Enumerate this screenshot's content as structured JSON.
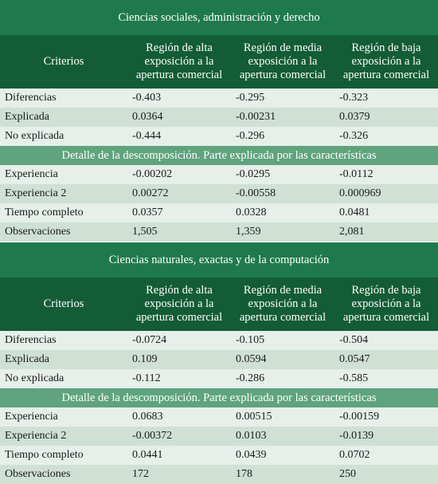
{
  "header_cols": [
    "Criterios",
    "Región de alta exposición a la apertura comercial",
    "Región de media exposición a la apertura comercial",
    "Región de baja exposición a la apertura comercial"
  ],
  "header_lines": [
    [
      "Región de alta",
      "exposición a la",
      "apertura comercial"
    ],
    [
      "Región de media",
      "exposición a la",
      "apertura comercial"
    ],
    [
      "Región de baja",
      "exposición a la",
      "apertura comercial"
    ]
  ],
  "sections": [
    {
      "title": "Ciencias sociales, administración y derecho",
      "rows_a": [
        {
          "label": "Diferencias",
          "values": [
            "-0.403",
            "-0.295",
            "-0.323"
          ]
        },
        {
          "label": "Explicada",
          "values": [
            "0.0364",
            "-0.00231",
            "0.0379"
          ]
        },
        {
          "label": "No explicada",
          "values": [
            "-0.444",
            "-0.296",
            "-0.326"
          ]
        }
      ],
      "subtitle": "Detalle de la descomposición. Parte explicada por las características",
      "rows_b": [
        {
          "label": "Experiencia",
          "values": [
            "-0.00202",
            "-0.0295",
            "-0.0112"
          ]
        },
        {
          "label": "Experiencia 2",
          "values": [
            "0.00272",
            "-0.00558",
            "0.000969"
          ]
        },
        {
          "label": "Tiempo completo",
          "values": [
            "0.0357",
            "0.0328",
            "0.0481"
          ]
        },
        {
          "label": "Observaciones",
          "values": [
            "1,505",
            "1,359",
            "2,081"
          ]
        }
      ]
    },
    {
      "title": "Ciencias naturales, exactas y de la computación",
      "rows_a": [
        {
          "label": "Diferencias",
          "values": [
            "-0.0724",
            "-0.105",
            "-0.504"
          ]
        },
        {
          "label": "Explicada",
          "values": [
            "0.109",
            "0.0594",
            "0.0547"
          ]
        },
        {
          "label": "No explicada",
          "values": [
            "-0.112",
            "-0.286",
            "-0.585"
          ]
        }
      ],
      "subtitle": "Detalle de la descomposición. Parte explicada por las características",
      "rows_b": [
        {
          "label": "Experiencia",
          "values": [
            "0.0683",
            "0.00515",
            "-0.00159"
          ]
        },
        {
          "label": "Experiencia 2",
          "values": [
            "-0.00372",
            "0.0103",
            "-0.0139"
          ]
        },
        {
          "label": "Tiempo completo",
          "values": [
            "0.0441",
            "0.0439",
            "0.0702"
          ]
        },
        {
          "label": "Observaciones",
          "values": [
            "172",
            "178",
            "250"
          ]
        }
      ]
    }
  ]
}
